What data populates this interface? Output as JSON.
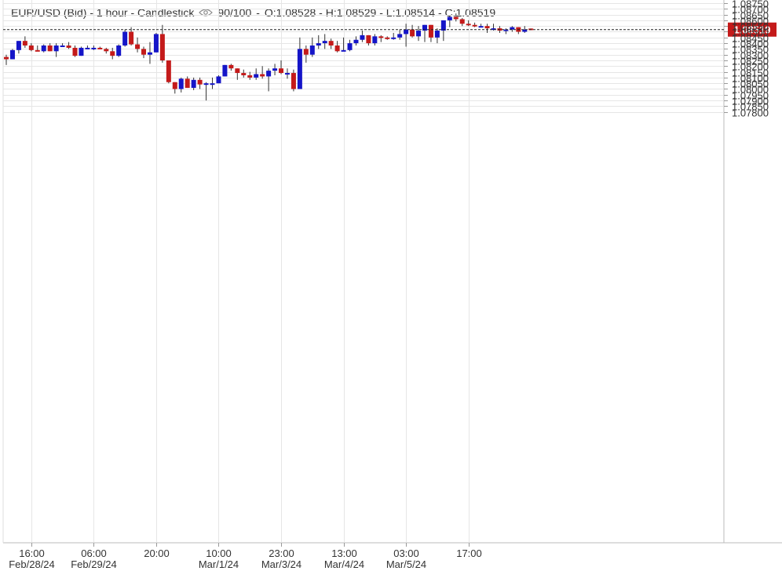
{
  "header": {
    "title": "EUR/USD (Bid) - 1 hour - Candlestick",
    "quality": "90/100",
    "ohlc": "O:1.08528 - H:1.08529 - L:1.08514 - C:1.08519",
    "eye_icon": "eye-icon"
  },
  "colors": {
    "up": "#1515c8",
    "down": "#c41a1a",
    "wick": "#333333",
    "grid": "#e6e6e6",
    "price_tag": "#c41a1a",
    "price_line": "#222222"
  },
  "chart_data": {
    "type": "candlestick",
    "title": "EUR/USD (Bid) - 1 hour - Candlestick",
    "ylim": [
      1.0778,
      1.0875
    ],
    "y_ticks": [
      "1.08750",
      "1.08700",
      "1.08650",
      "1.08600",
      "1.08550",
      "1.08500",
      "1.08450",
      "1.08400",
      "1.08350",
      "1.08300",
      "1.08250",
      "1.08200",
      "1.08150",
      "1.08100",
      "1.08050",
      "1.08000",
      "1.07950",
      "1.07900",
      "1.07850",
      "1.07800"
    ],
    "y_tick_values": [
      1.0875,
      1.087,
      1.0865,
      1.086,
      1.0855,
      1.085,
      1.0845,
      1.084,
      1.0835,
      1.083,
      1.0825,
      1.082,
      1.0815,
      1.081,
      1.0805,
      1.08,
      1.0795,
      1.079,
      1.0785,
      1.078
    ],
    "x_ticks": [
      {
        "time": "16:00",
        "date": "Feb/28/24",
        "index": 4
      },
      {
        "time": "06:00",
        "date": "Feb/29/24",
        "index": 14
      },
      {
        "time": "20:00",
        "date": "",
        "index": 24
      },
      {
        "time": "10:00",
        "date": "Mar/1/24",
        "index": 34
      },
      {
        "time": "23:00",
        "date": "Mar/3/24",
        "index": 44
      },
      {
        "time": "13:00",
        "date": "Mar/4/24",
        "index": 54
      },
      {
        "time": "03:00",
        "date": "Mar/5/24",
        "index": 64
      },
      {
        "time": "17:00",
        "date": "",
        "index": 74
      }
    ],
    "last_price": "1.08519",
    "last_value": 1.08519,
    "candles": [
      [
        1.0828,
        1.083,
        1.0821,
        1.0826
      ],
      [
        1.0826,
        1.0835,
        1.0826,
        1.0834
      ],
      [
        1.0834,
        1.0842,
        1.0831,
        1.0842
      ],
      [
        1.0842,
        1.0846,
        1.0836,
        1.0838
      ],
      [
        1.0838,
        1.084,
        1.0833,
        1.0834
      ],
      [
        1.0834,
        1.0838,
        1.0833,
        1.0833
      ],
      [
        1.0833,
        1.0839,
        1.0832,
        1.0838
      ],
      [
        1.0838,
        1.084,
        1.0833,
        1.0833
      ],
      [
        1.0833,
        1.084,
        1.0828,
        1.0838
      ],
      [
        1.0838,
        1.084,
        1.0837,
        1.0838
      ],
      [
        1.0838,
        1.0841,
        1.0835,
        1.0836
      ],
      [
        1.0836,
        1.0838,
        1.0828,
        1.0829
      ],
      [
        1.0829,
        1.0837,
        1.0829,
        1.0836
      ],
      [
        1.0836,
        1.0838,
        1.0835,
        1.0836
      ],
      [
        1.0836,
        1.0838,
        1.0834,
        1.0836
      ],
      [
        1.0836,
        1.0837,
        1.0835,
        1.0835
      ],
      [
        1.0835,
        1.0836,
        1.0831,
        1.0833
      ],
      [
        1.0833,
        1.0836,
        1.0826,
        1.0829
      ],
      [
        1.0829,
        1.0839,
        1.0828,
        1.0838
      ],
      [
        1.0838,
        1.0852,
        1.0837,
        1.085
      ],
      [
        1.085,
        1.0854,
        1.0838,
        1.0839
      ],
      [
        1.0839,
        1.0845,
        1.0832,
        1.0835
      ],
      [
        1.0835,
        1.0837,
        1.0827,
        1.083
      ],
      [
        1.083,
        1.0841,
        1.0822,
        1.0832
      ],
      [
        1.0832,
        1.0849,
        1.0832,
        1.0848
      ],
      [
        1.0848,
        1.0856,
        1.0823,
        1.0825
      ],
      [
        1.0825,
        1.0825,
        1.0805,
        1.0806
      ],
      [
        1.0806,
        1.0806,
        1.0796,
        1.08
      ],
      [
        1.08,
        1.081,
        1.0797,
        1.0809
      ],
      [
        1.0809,
        1.0811,
        1.0801,
        1.0801
      ],
      [
        1.0801,
        1.081,
        1.0799,
        1.0808
      ],
      [
        1.0808,
        1.081,
        1.08,
        1.0804
      ],
      [
        1.0804,
        1.0806,
        1.079,
        1.0805
      ],
      [
        1.0805,
        1.081,
        1.08,
        1.0805
      ],
      [
        1.0805,
        1.0812,
        1.0805,
        1.0811
      ],
      [
        1.0811,
        1.0821,
        1.0811,
        1.0821
      ],
      [
        1.0821,
        1.0822,
        1.0816,
        1.0818
      ],
      [
        1.0818,
        1.0818,
        1.0808,
        1.0814
      ],
      [
        1.0814,
        1.0817,
        1.081,
        1.0812
      ],
      [
        1.0812,
        1.0815,
        1.0808,
        1.081
      ],
      [
        1.081,
        1.0818,
        1.0808,
        1.0813
      ],
      [
        1.0813,
        1.082,
        1.0809,
        1.0811
      ],
      [
        1.0811,
        1.0818,
        1.0798,
        1.0816
      ],
      [
        1.0816,
        1.0822,
        1.0812,
        1.0818
      ],
      [
        1.0818,
        1.0825,
        1.0813,
        1.0814
      ],
      [
        1.0814,
        1.0818,
        1.0809,
        1.0814
      ],
      [
        1.0814,
        1.0817,
        1.0798,
        1.08
      ],
      [
        1.08,
        1.0845,
        1.08,
        1.0835
      ],
      [
        1.0835,
        1.0838,
        1.0823,
        1.083
      ],
      [
        1.083,
        1.0845,
        1.0828,
        1.0838
      ],
      [
        1.0838,
        1.0847,
        1.0835,
        1.084
      ],
      [
        1.084,
        1.0848,
        1.0835,
        1.0842
      ],
      [
        1.0842,
        1.0844,
        1.0835,
        1.0838
      ],
      [
        1.0838,
        1.0842,
        1.0832,
        1.0833
      ],
      [
        1.0833,
        1.0845,
        1.0833,
        1.0834
      ],
      [
        1.0834,
        1.0843,
        1.0833,
        1.084
      ],
      [
        1.084,
        1.0846,
        1.0838,
        1.0843
      ],
      [
        1.0843,
        1.0851,
        1.0841,
        1.0847
      ],
      [
        1.0847,
        1.0847,
        1.0838,
        1.084
      ],
      [
        1.084,
        1.0848,
        1.0838,
        1.0846
      ],
      [
        1.0846,
        1.0847,
        1.0841,
        1.0845
      ],
      [
        1.0845,
        1.0846,
        1.0843,
        1.0844
      ],
      [
        1.0844,
        1.0849,
        1.0843,
        1.0845
      ],
      [
        1.0845,
        1.0852,
        1.0843,
        1.0848
      ],
      [
        1.0848,
        1.0857,
        1.0837,
        1.0852
      ],
      [
        1.0852,
        1.0856,
        1.0845,
        1.0846
      ],
      [
        1.0846,
        1.0855,
        1.0842,
        1.0851
      ],
      [
        1.0851,
        1.0856,
        1.0841,
        1.0856
      ],
      [
        1.0856,
        1.0856,
        1.0841,
        1.0845
      ],
      [
        1.0845,
        1.0853,
        1.084,
        1.0851
      ],
      [
        1.0851,
        1.086,
        1.0842,
        1.086
      ],
      [
        1.086,
        1.0864,
        1.0854,
        1.0863
      ],
      [
        1.0863,
        1.0866,
        1.0859,
        1.0861
      ],
      [
        1.0861,
        1.0862,
        1.0855,
        1.0857
      ],
      [
        1.0857,
        1.086,
        1.0855,
        1.0856
      ],
      [
        1.0856,
        1.0858,
        1.0854,
        1.0855
      ],
      [
        1.0855,
        1.0857,
        1.0854,
        1.0855
      ],
      [
        1.0855,
        1.0857,
        1.0849,
        1.0853
      ],
      [
        1.0853,
        1.0857,
        1.0851,
        1.0853
      ],
      [
        1.0853,
        1.0855,
        1.0849,
        1.0851
      ],
      [
        1.0851,
        1.0853,
        1.0848,
        1.0852
      ],
      [
        1.0852,
        1.0855,
        1.085,
        1.0854
      ],
      [
        1.0854,
        1.0854,
        1.0848,
        1.085
      ],
      [
        1.085,
        1.0855,
        1.0849,
        1.0852
      ],
      [
        1.08528,
        1.08529,
        1.08514,
        1.08519
      ]
    ]
  }
}
